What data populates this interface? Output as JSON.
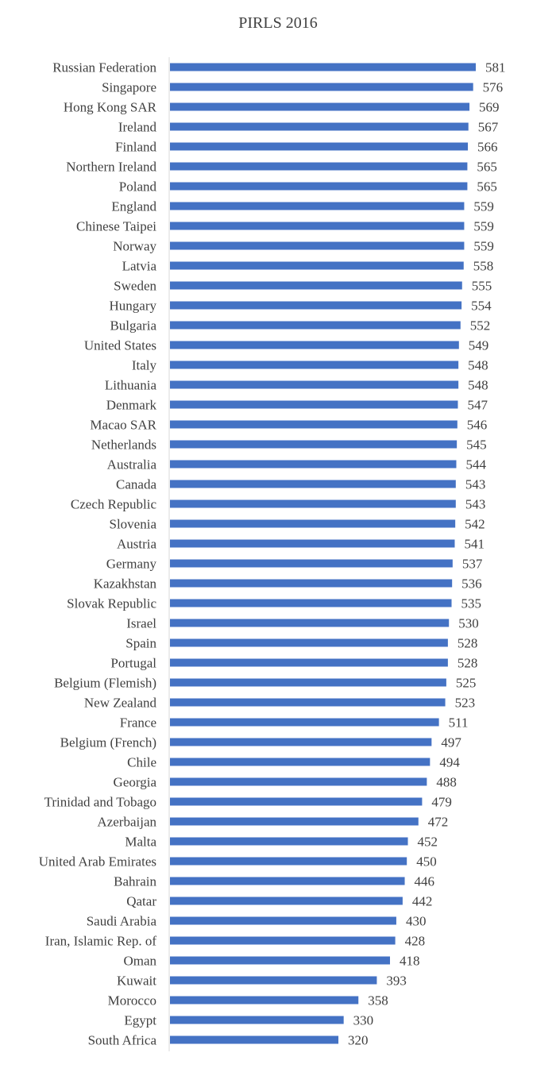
{
  "chart_data": {
    "type": "bar",
    "orientation": "horizontal",
    "title": "PIRLS 2016",
    "xlabel": "",
    "ylabel": "",
    "xlim": [
      0,
      600
    ],
    "grid": false,
    "legend": "none",
    "data_labels": true,
    "bar_color": "#4472C4",
    "label_color": "#404040",
    "axis_color": "#D9D9D9",
    "categories": [
      "Russian Federation",
      "Singapore",
      "Hong Kong SAR",
      "Ireland",
      "Finland",
      "Northern Ireland",
      "Poland",
      "England",
      "Chinese Taipei",
      "Norway",
      "Latvia",
      "Sweden",
      "Hungary",
      "Bulgaria",
      "United States",
      "Italy",
      "Lithuania",
      "Denmark",
      "Macao SAR",
      "Netherlands",
      "Australia",
      "Canada",
      "Czech Republic",
      "Slovenia",
      "Austria",
      "Germany",
      "Kazakhstan",
      "Slovak Republic",
      "Israel",
      "Spain",
      "Portugal",
      "Belgium (Flemish)",
      "New Zealand",
      "France",
      "Belgium (French)",
      "Chile",
      "Georgia",
      "Trinidad and Tobago",
      "Azerbaijan",
      "Malta",
      "United Arab Emirates",
      "Bahrain",
      "Qatar",
      "Saudi Arabia",
      "Iran, Islamic Rep. of",
      "Oman",
      "Kuwait",
      "Morocco",
      "Egypt",
      "South Africa"
    ],
    "values": [
      581,
      576,
      569,
      567,
      566,
      565,
      565,
      559,
      559,
      559,
      558,
      555,
      554,
      552,
      549,
      548,
      548,
      547,
      546,
      545,
      544,
      543,
      543,
      542,
      541,
      537,
      536,
      535,
      530,
      528,
      528,
      525,
      523,
      511,
      497,
      494,
      488,
      479,
      472,
      452,
      450,
      446,
      442,
      430,
      428,
      418,
      393,
      358,
      330,
      320
    ]
  }
}
